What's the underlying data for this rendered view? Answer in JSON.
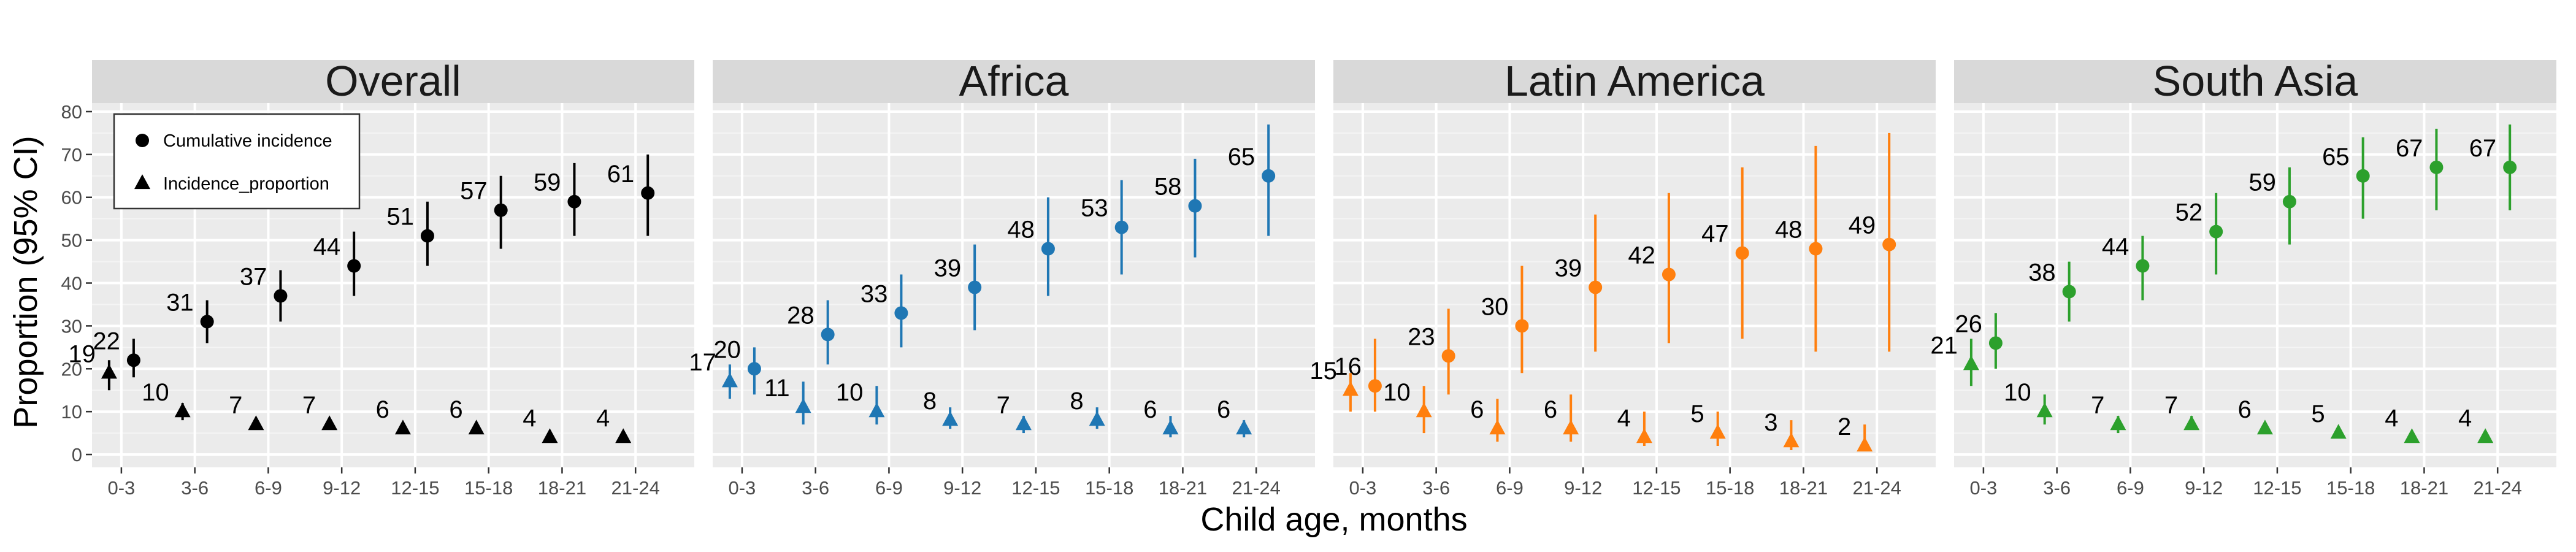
{
  "chart_data": {
    "type": "scatter",
    "ylabel": "Proportion (95% CI)",
    "xlabel": "Child age, months",
    "ylim": [
      -3,
      82
    ],
    "y_ticks": [
      0,
      10,
      20,
      30,
      40,
      50,
      60,
      70,
      80
    ],
    "grid": true,
    "legend": {
      "placement": "top-left inside first panel",
      "entries": [
        {
          "label": "Cumulative incidence",
          "shape": "circle"
        },
        {
          "label": "Incidence_proportion",
          "shape": "triangle"
        }
      ]
    },
    "categories": [
      "0-3",
      "3-6",
      "6-9",
      "9-12",
      "12-15",
      "15-18",
      "18-21",
      "21-24"
    ],
    "panels": [
      {
        "title": "Overall",
        "color": "#000000",
        "cumulative_incidence": {
          "values": [
            22,
            31,
            37,
            44,
            51,
            57,
            59,
            61
          ],
          "ci_low": [
            18,
            26,
            31,
            37,
            44,
            48,
            51,
            51
          ],
          "ci_high": [
            27,
            36,
            43,
            52,
            59,
            65,
            68,
            70
          ],
          "labels": [
            "22",
            "31",
            "37",
            "44",
            "51",
            "57",
            "59",
            "61"
          ]
        },
        "incidence_proportion": {
          "values": [
            19,
            10,
            7,
            7,
            6,
            6,
            4,
            4
          ],
          "ci_low": [
            15,
            8,
            6,
            6,
            5,
            5,
            4,
            4
          ],
          "ci_high": [
            22,
            12,
            8,
            8,
            7,
            7,
            5,
            5
          ],
          "labels": [
            "19",
            "10",
            "7",
            "7",
            "6",
            "6",
            "4",
            "4"
          ]
        }
      },
      {
        "title": "Africa",
        "color": "#1F77B4",
        "cumulative_incidence": {
          "values": [
            20,
            28,
            33,
            39,
            48,
            53,
            58,
            65
          ],
          "ci_low": [
            14,
            21,
            25,
            29,
            37,
            42,
            46,
            51
          ],
          "ci_high": [
            25,
            36,
            42,
            49,
            60,
            64,
            69,
            77
          ],
          "labels": [
            "20",
            "28",
            "33",
            "39",
            "48",
            "53",
            "58",
            "65"
          ]
        },
        "incidence_proportion": {
          "values": [
            17,
            11,
            10,
            8,
            7,
            8,
            6,
            6
          ],
          "ci_low": [
            13,
            7,
            7,
            6,
            5,
            6,
            4,
            4
          ],
          "ci_high": [
            21,
            17,
            16,
            11,
            9,
            11,
            9,
            8
          ],
          "labels": [
            "17",
            "11",
            "10",
            "8",
            "7",
            "8",
            "6",
            "6"
          ]
        }
      },
      {
        "title": "Latin America",
        "color": "#FF7F0E",
        "cumulative_incidence": {
          "values": [
            16,
            23,
            30,
            39,
            42,
            47,
            48,
            49
          ],
          "ci_low": [
            10,
            14,
            19,
            24,
            26,
            27,
            24,
            24
          ],
          "ci_high": [
            27,
            34,
            44,
            56,
            61,
            67,
            72,
            75
          ],
          "labels": [
            "16",
            "23",
            "30",
            "39",
            "42",
            "47",
            "48",
            "49"
          ]
        },
        "incidence_proportion": {
          "values": [
            15,
            10,
            6,
            6,
            4,
            5,
            3,
            2
          ],
          "ci_low": [
            10,
            5,
            3,
            3,
            2,
            2,
            1,
            1
          ],
          "ci_high": [
            19,
            16,
            13,
            14,
            10,
            10,
            8,
            7
          ],
          "labels": [
            "15",
            "10",
            "6",
            "6",
            "4",
            "5",
            "3",
            "2"
          ]
        }
      },
      {
        "title": "South Asia",
        "color": "#2CA02C",
        "cumulative_incidence": {
          "values": [
            26,
            38,
            44,
            52,
            59,
            65,
            67,
            67
          ],
          "ci_low": [
            20,
            31,
            36,
            42,
            49,
            55,
            57,
            57
          ],
          "ci_high": [
            33,
            45,
            51,
            61,
            67,
            74,
            76,
            77
          ],
          "labels": [
            "26",
            "38",
            "44",
            "52",
            "59",
            "65",
            "67",
            "67"
          ]
        },
        "incidence_proportion": {
          "values": [
            21,
            10,
            7,
            7,
            6,
            5,
            4,
            4
          ],
          "ci_low": [
            16,
            7,
            5,
            6,
            5,
            4,
            3,
            3
          ],
          "ci_high": [
            27,
            14,
            9,
            9,
            7,
            6,
            5,
            5
          ],
          "labels": [
            "21",
            "10",
            "7",
            "7",
            "6",
            "5",
            "4",
            "4"
          ]
        }
      }
    ]
  }
}
